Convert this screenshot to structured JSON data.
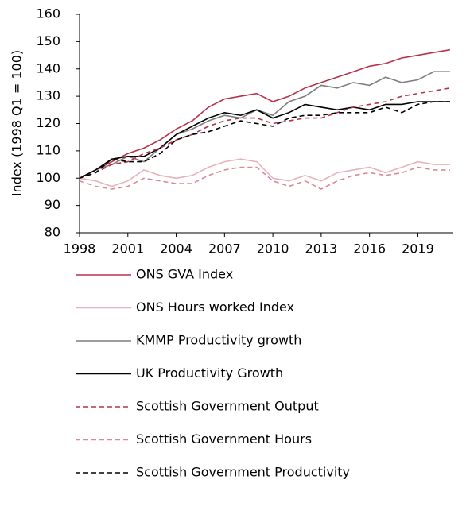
{
  "chart_data": {
    "type": "line",
    "y_label": "Index (1998 Q1 = 100)",
    "x": [
      1998,
      1999,
      2000,
      2001,
      2002,
      2003,
      2004,
      2005,
      2006,
      2007,
      2008,
      2009,
      2010,
      2011,
      2012,
      2013,
      2014,
      2015,
      2016,
      2017,
      2018,
      2019,
      2020,
      2021
    ],
    "xlim": [
      1998,
      2021.2
    ],
    "xticks": [
      1998,
      2001,
      2004,
      2007,
      2010,
      2013,
      2016,
      2019
    ],
    "ylim": [
      80,
      160
    ],
    "yticks": [
      80,
      90,
      100,
      110,
      120,
      130,
      140,
      150,
      160
    ],
    "series": [
      {
        "name": "ONS GVA Index",
        "color": "#b5334a",
        "dashed": false,
        "values": [
          100,
          103,
          106,
          109,
          111,
          114,
          118,
          121,
          126,
          129,
          130,
          131,
          128,
          130,
          133,
          135,
          137,
          139,
          141,
          142,
          144,
          145,
          146,
          147
        ]
      },
      {
        "name": "ONS Hours worked Index",
        "color": "#e6b3bc",
        "dashed": false,
        "values": [
          100,
          99,
          97,
          99,
          103,
          101,
          100,
          101,
          104,
          106,
          107,
          106,
          100,
          99,
          101,
          99,
          102,
          103,
          104,
          102,
          104,
          106,
          105,
          105
        ]
      },
      {
        "name": "KMMP Productivity growth",
        "color": "#7f7f7f",
        "dashed": false,
        "values": [
          100,
          103,
          105,
          108,
          106,
          111,
          116,
          118,
          121,
          123,
          122,
          125,
          123,
          128,
          130,
          134,
          133,
          135,
          134,
          137,
          135,
          136,
          139,
          139
        ]
      },
      {
        "name": "UK Productivity Growth",
        "color": "#000000",
        "dashed": false,
        "values": [
          100,
          103,
          107,
          108,
          108,
          111,
          116,
          119,
          122,
          124,
          123,
          125,
          122,
          124,
          127,
          126,
          125,
          126,
          125,
          127,
          127,
          128,
          128,
          128
        ]
      },
      {
        "name": "Scottish Government Output",
        "color": "#b5334a",
        "dashed": true,
        "values": [
          100,
          102,
          105,
          106,
          109,
          111,
          114,
          116,
          119,
          121,
          122,
          122,
          120,
          121,
          122,
          122,
          124,
          126,
          127,
          128,
          130,
          131,
          132,
          133
        ]
      },
      {
        "name": "Scottish Government Hours",
        "color": "#d98a99",
        "dashed": true,
        "values": [
          99,
          97,
          96,
          97,
          100,
          99,
          98,
          98,
          101,
          103,
          104,
          104,
          99,
          97,
          99,
          96,
          99,
          101,
          102,
          101,
          102,
          104,
          103,
          103
        ]
      },
      {
        "name": "Scottish Government Productivity",
        "color": "#000000",
        "dashed": true,
        "values": [
          100,
          102,
          107,
          106,
          106,
          109,
          114,
          116,
          117,
          119,
          121,
          120,
          119,
          122,
          123,
          123,
          124,
          124,
          124,
          126,
          124,
          127,
          128,
          128
        ]
      }
    ]
  }
}
